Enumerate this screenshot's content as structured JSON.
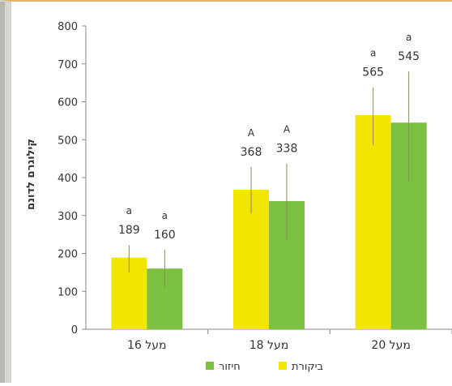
{
  "chart_data": {
    "type": "bar",
    "categories": [
      "מעל 16",
      "מעל 18",
      "מעל 20"
    ],
    "series": [
      {
        "name": "ביקורת",
        "color": "#f2e600",
        "values": [
          189,
          368,
          565
        ],
        "error": [
          [
            150,
            222
          ],
          [
            305,
            428
          ],
          [
            485,
            638
          ]
        ],
        "letters": [
          "a",
          "A",
          "a"
        ]
      },
      {
        "name": "חיזור",
        "color": "#7cc242",
        "values": [
          160,
          338,
          545
        ],
        "error": [
          [
            110,
            210
          ],
          [
            235,
            437
          ],
          [
            390,
            680
          ]
        ],
        "letters": [
          "a",
          "A",
          "a"
        ]
      }
    ],
    "ylabel": "קילוגרם לדונם",
    "ylim": [
      0,
      800
    ],
    "yticks": [
      0,
      100,
      200,
      300,
      400,
      500,
      600,
      700,
      800
    ],
    "grid": false,
    "legend_position": "bottom"
  }
}
